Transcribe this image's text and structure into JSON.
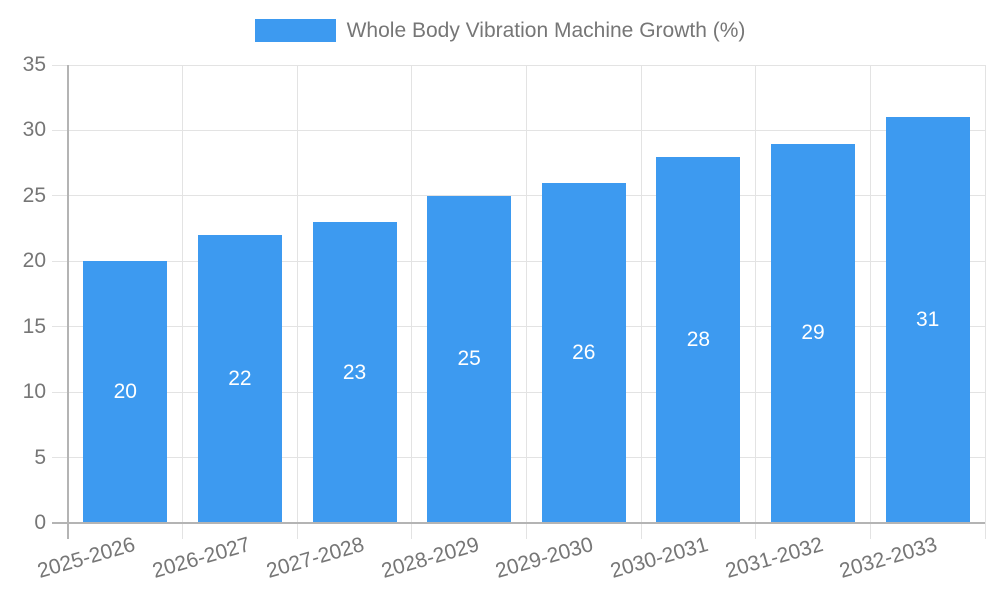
{
  "chart_data": {
    "type": "bar",
    "title": "Whole Body Vibration Machine Growth (%)",
    "legend_position": "top",
    "categories": [
      "2025-2026",
      "2026-2027",
      "2027-2028",
      "2028-2029",
      "2029-2030",
      "2030-2031",
      "2031-2032",
      "2032-2033"
    ],
    "values": [
      20,
      22,
      23,
      25,
      26,
      28,
      29,
      31
    ],
    "ylim": [
      0,
      35
    ],
    "yticks": [
      0,
      5,
      10,
      15,
      20,
      25,
      30,
      35
    ],
    "grid": true,
    "x_label_rotation_deg": -16,
    "bar_color": "#3d9af0",
    "value_label_color": "#ffffff",
    "axis_text_color": "#767676",
    "grid_color": "#e3e3e3",
    "axis_line_color": "#b4b4b4",
    "background_color": "#ffffff"
  }
}
